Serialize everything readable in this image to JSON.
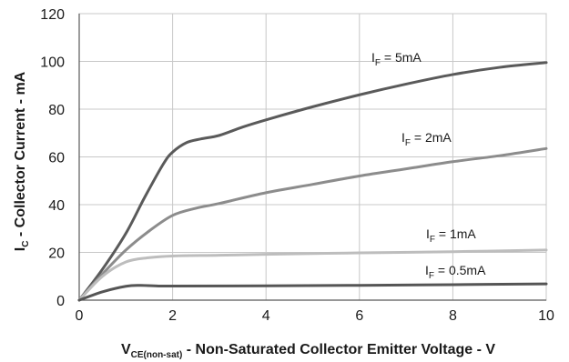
{
  "chart_data": {
    "type": "line",
    "xlabel": {
      "main": "V",
      "sub": "CE(non-sat)",
      "rest": " - Non-Saturated Collector Emitter Voltage - V"
    },
    "ylabel": {
      "main": "I",
      "sub": "C",
      "rest": " - Collector Current - mA"
    },
    "xlim": [
      0,
      10
    ],
    "ylim": [
      0,
      120
    ],
    "xticks": [
      0,
      2,
      4,
      6,
      8,
      10
    ],
    "yticks": [
      0,
      20,
      40,
      60,
      80,
      100,
      120
    ],
    "grid": true,
    "series": [
      {
        "label_main": "I",
        "label_sub": "F",
        "label_rest": " = 5mA",
        "color": "#5a5a5a",
        "x": [
          0,
          0.5,
          1.0,
          1.4,
          1.8,
          2.0,
          2.3,
          2.6,
          3.0,
          3.5,
          4.0,
          5.0,
          6.0,
          7.0,
          8.0,
          9.0,
          10.0
        ],
        "y": [
          0,
          13,
          28,
          43,
          57,
          62,
          66,
          67.5,
          69,
          72.5,
          75.5,
          81,
          86,
          90.5,
          94.5,
          97.5,
          99.5
        ]
      },
      {
        "label_main": "I",
        "label_sub": "F",
        "label_rest": " = 2mA",
        "color": "#8c8c8c",
        "x": [
          0,
          0.5,
          1.0,
          1.5,
          2.0,
          2.5,
          3.0,
          4.0,
          5.0,
          6.0,
          7.0,
          8.0,
          9.0,
          10.0
        ],
        "y": [
          0,
          11,
          21,
          29,
          35.5,
          38.5,
          40.5,
          45,
          48.5,
          52,
          55,
          58,
          60.5,
          63.5
        ]
      },
      {
        "label_main": "I",
        "label_sub": "F",
        "label_rest": " = 1mA",
        "color": "#bdbdbd",
        "x": [
          0,
          0.5,
          1.0,
          1.5,
          2.0,
          3.0,
          4.0,
          6.0,
          8.0,
          10.0
        ],
        "y": [
          0,
          10,
          16,
          17.8,
          18.5,
          18.8,
          19.2,
          19.8,
          20.3,
          21
        ]
      },
      {
        "label_main": "I",
        "label_sub": "F",
        "label_rest": " = 0.5mA",
        "color": "#555555",
        "x": [
          0,
          0.5,
          1.0,
          1.3,
          1.6,
          2.0,
          4.0,
          6.0,
          8.0,
          10.0
        ],
        "y": [
          0,
          3.5,
          5.8,
          6.2,
          6,
          5.9,
          6,
          6.2,
          6.5,
          6.8
        ]
      }
    ]
  }
}
